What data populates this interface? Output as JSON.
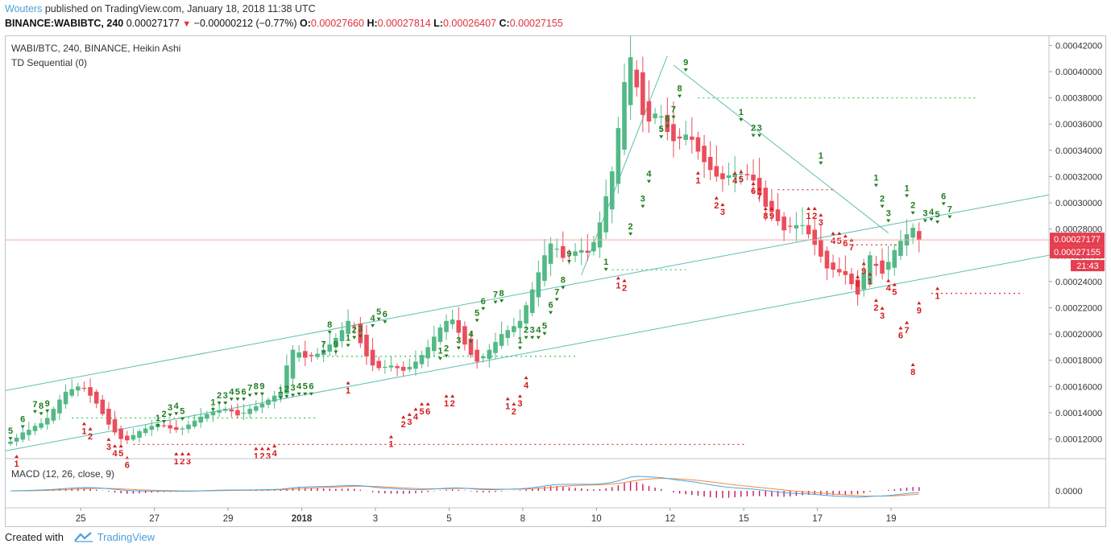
{
  "header": {
    "author": "Wouters",
    "published": "published on TradingView.com, January 18, 2018 11:38 UTC",
    "symbol": "BINANCE:WABIBTC, 240",
    "price": "0.00027177",
    "change_arrow": "▼",
    "change": "−0.00000212 (−0.77%)",
    "o_label": "O:",
    "o_value": "0.00027660",
    "h_label": "H:",
    "h_value": "0.00027814",
    "l_label": "L:",
    "l_value": "0.00026407",
    "c_label": "C:",
    "c_value": "0.00027155"
  },
  "main_pane": {
    "title": "WABI/BTC, 240, BINANCE, Heikin Ashi",
    "indicator": "TD Sequential (0)"
  },
  "macd_pane": {
    "title": "MACD (12, 26, close, 9)",
    "zero_label": "0.0000"
  },
  "footer": {
    "created_with": "Created with",
    "brand": "TradingView"
  },
  "colors": {
    "up": "#53b987",
    "down": "#eb4d5c",
    "trend": "#5fbfae",
    "td_green": "#1e7d1e",
    "td_red": "#d31b1b",
    "macd_line": "#4aa3df",
    "signal_line": "#f2893c",
    "hist": "#c2185b",
    "last_price": "#e53e4f"
  },
  "chart_data": {
    "type": "candlestick",
    "style": "Heikin Ashi",
    "timeframe": "240",
    "ylim": [
      0.000105,
      0.000427
    ],
    "y_ticks": [
      "0.00012000",
      "0.00014000",
      "0.00016000",
      "0.00018000",
      "0.00020000",
      "0.00022000",
      "0.00024000",
      "0.00026000",
      "0.00028000",
      "0.00030000",
      "0.00032000",
      "0.00034000",
      "0.00036000",
      "0.00038000",
      "0.00040000",
      "0.00042000"
    ],
    "x_ticks": [
      "25",
      "27",
      "29",
      "2018",
      "3",
      "5",
      "8",
      "10",
      "12",
      "15",
      "17",
      "19"
    ],
    "x_tick_positions": [
      2,
      14,
      26,
      38,
      50,
      62,
      74,
      86,
      98,
      110,
      122,
      134
    ],
    "last_price_labels": [
      "0.00027177",
      "0.00027155"
    ],
    "countdown": "21:43",
    "close": [
      0.000118,
      0.000121,
      0.000125,
      0.000127,
      0.00013,
      0.000132,
      0.000136,
      0.000143,
      0.00015,
      0.000156,
      0.000158,
      0.00016,
      0.000159,
      0.000153,
      0.000147,
      0.000139,
      0.000131,
      0.000125,
      0.00012,
      0.000119,
      0.000123,
      0.000126,
      0.000128,
      0.00013,
      0.000131,
      0.00013,
      0.000128,
      0.000127,
      0.000128,
      0.000131,
      0.000134,
      0.000137,
      0.000139,
      0.000141,
      0.000142,
      0.000143,
      0.000141,
      0.000138,
      0.00014,
      0.000143,
      0.000145,
      0.000147,
      0.00015,
      0.000153,
      0.000156,
      0.000176,
      0.000188,
      0.000186,
      0.000182,
      0.000183,
      0.000185,
      0.000188,
      0.000192,
      0.000197,
      0.000203,
      0.00021,
      0.000206,
      0.000193,
      0.000183,
      0.000176,
      0.000174,
      0.000175,
      0.000176,
      0.000174,
      0.000172,
      0.000175,
      0.000179,
      0.000184,
      0.00019,
      0.000198,
      0.000205,
      0.00021,
      0.000211,
      0.000201,
      0.000192,
      0.000184,
      0.000179,
      0.000183,
      0.000188,
      0.000194,
      0.0002,
      0.000203,
      0.000206,
      0.00021,
      0.000222,
      0.000234,
      0.000247,
      0.00026,
      0.000269,
      0.000265,
      0.000258,
      0.000261,
      0.000263,
      0.000264,
      0.000262,
      0.00027,
      0.000285,
      0.000305,
      0.000324,
      0.000357,
      0.000392,
      0.000411,
      0.000388,
      0.000367,
      0.000362,
      0.000368,
      0.000366,
      0.000354,
      0.000347,
      0.000349,
      0.000352,
      0.000348,
      0.000339,
      0.000331,
      0.000325,
      0.00032,
      0.000318,
      0.000321,
      0.000322,
      0.000322,
      0.000321,
      0.000317,
      0.000306,
      0.000297,
      0.000293,
      0.000286,
      0.000279,
      0.000282,
      0.000283,
      0.000283,
      0.000276,
      0.000268,
      0.000259,
      0.00025,
      0.000249,
      0.000247,
      0.000245,
      0.000238,
      0.00023,
      0.000247,
      0.00026,
      0.000252,
      0.000246,
      0.000255,
      0.000264,
      0.000271,
      0.000276,
      0.000281,
      0.000272
    ]
  }
}
